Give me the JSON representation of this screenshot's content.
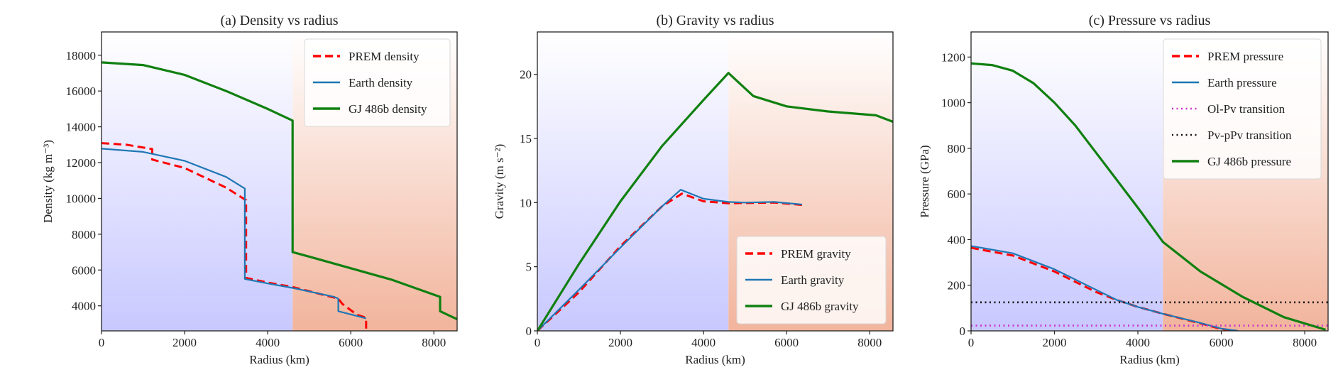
{
  "chart_data": [
    {
      "type": "line",
      "title": "(a) Density vs radius",
      "xlabel": "Radius (km)",
      "ylabel": "Density (kg m⁻³)",
      "xlim": [
        0,
        8560
      ],
      "ylim": [
        2600,
        19300
      ],
      "xticks": [
        0,
        2000,
        4000,
        6000,
        8000
      ],
      "yticks": [
        4000,
        6000,
        8000,
        10000,
        12000,
        14000,
        16000,
        18000
      ],
      "legend_position": "top-right",
      "shaded_regions": [
        {
          "from": 0,
          "to": 4600,
          "color": "#c8c8ff"
        },
        {
          "from": 4600,
          "to": 8560,
          "color": "#f2b49c"
        }
      ],
      "series": [
        {
          "name": "PREM density",
          "color": "#ff0000",
          "style": "dashed",
          "x": [
            0,
            600,
            1220,
            1220,
            2000,
            3000,
            3480,
            3480,
            4000,
            4600,
            5700,
            5800,
            6150,
            6350,
            6370,
            6370
          ],
          "y": [
            13090,
            13000,
            12760,
            12170,
            11700,
            10600,
            9900,
            5560,
            5300,
            5050,
            4400,
            4100,
            3500,
            3350,
            3300,
            2600
          ]
        },
        {
          "name": "Earth density",
          "color": "#1f77b4",
          "style": "solid",
          "x": [
            0,
            1000,
            2000,
            3000,
            3450,
            3450,
            4000,
            4600,
            5600,
            5700,
            5700,
            6370
          ],
          "y": [
            12780,
            12600,
            12100,
            11200,
            10550,
            5500,
            5250,
            5000,
            4500,
            4400,
            3700,
            3300
          ]
        },
        {
          "name": "GJ 486b density",
          "color": "#108010",
          "style": "solid",
          "x": [
            0,
            1000,
            2000,
            3000,
            4000,
            4600,
            4600,
            5000,
            6000,
            7000,
            8150,
            8150,
            8560
          ],
          "y": [
            17600,
            17450,
            16900,
            16000,
            15000,
            14350,
            7000,
            6750,
            6100,
            5450,
            4500,
            3700,
            3250
          ]
        }
      ]
    },
    {
      "type": "line",
      "title": "(b) Gravity vs radius",
      "xlabel": "Radius (km)",
      "ylabel": "Gravity (m s⁻²)",
      "xlim": [
        0,
        8560
      ],
      "ylim": [
        0,
        23.3
      ],
      "xticks": [
        0,
        2000,
        4000,
        6000,
        8000
      ],
      "yticks": [
        0,
        5,
        10,
        15,
        20
      ],
      "legend_position": "bottom-right",
      "shaded_regions": [
        {
          "from": 0,
          "to": 4600,
          "color": "#c8c8ff"
        },
        {
          "from": 4600,
          "to": 8560,
          "color": "#f2b49c"
        }
      ],
      "series": [
        {
          "name": "PREM gravity",
          "color": "#ff0000",
          "style": "dashed",
          "x": [
            0,
            1000,
            2000,
            3000,
            3480,
            4000,
            4600,
            5700,
            6370
          ],
          "y": [
            0,
            3.0,
            6.6,
            9.7,
            10.7,
            10.1,
            9.95,
            10.0,
            9.82
          ]
        },
        {
          "name": "Earth gravity",
          "color": "#1f77b4",
          "style": "solid",
          "x": [
            0,
            1000,
            2000,
            3000,
            3450,
            4000,
            4600,
            5000,
            5700,
            6370
          ],
          "y": [
            0,
            3.2,
            6.5,
            9.7,
            11.0,
            10.3,
            10.05,
            10.0,
            10.05,
            9.85
          ]
        },
        {
          "name": "GJ 486b gravity",
          "color": "#108010",
          "style": "solid",
          "x": [
            0,
            1000,
            2000,
            3000,
            4000,
            4600,
            5200,
            6000,
            7000,
            8150,
            8560
          ],
          "y": [
            0,
            5.2,
            10.1,
            14.4,
            18.0,
            20.1,
            18.3,
            17.5,
            17.1,
            16.8,
            16.3
          ]
        }
      ]
    },
    {
      "type": "line",
      "title": "(c) Pressure vs radius",
      "xlabel": "Radius (km)",
      "ylabel": "Pressure (GPa)",
      "xlim": [
        0,
        8560
      ],
      "ylim": [
        0,
        1310
      ],
      "xticks": [
        0,
        2000,
        4000,
        6000,
        8000
      ],
      "yticks": [
        0,
        200,
        400,
        600,
        800,
        1000,
        1200
      ],
      "legend_position": "top-right",
      "shaded_regions": [
        {
          "from": 0,
          "to": 4600,
          "color": "#c8c8ff"
        },
        {
          "from": 4600,
          "to": 8560,
          "color": "#f2b49c"
        }
      ],
      "series": [
        {
          "name": "PREM pressure",
          "color": "#ff0000",
          "style": "dashed",
          "x": [
            0,
            1000,
            2000,
            3000,
            3500,
            4000,
            4600,
            5500,
            6000,
            6371
          ],
          "y": [
            364,
            330,
            260,
            170,
            135,
            105,
            75,
            33,
            8,
            0
          ]
        },
        {
          "name": "Earth pressure",
          "color": "#1f77b4",
          "style": "solid",
          "x": [
            0,
            1000,
            2000,
            3000,
            3500,
            4000,
            4600,
            5500,
            6000,
            6400
          ],
          "y": [
            372,
            340,
            270,
            180,
            135,
            105,
            75,
            35,
            10,
            0
          ]
        },
        {
          "name": "Ol-Pv transition",
          "color": "#cc33cc",
          "style": "dotted",
          "x": [
            0,
            8560
          ],
          "y": [
            23,
            23
          ]
        },
        {
          "name": "Pv-pPv transition",
          "color": "#111111",
          "style": "dotted",
          "x": [
            0,
            8560
          ],
          "y": [
            125,
            125
          ]
        },
        {
          "name": "GJ 486b pressure",
          "color": "#108010",
          "style": "solid",
          "x": [
            0,
            500,
            1000,
            1500,
            2000,
            2500,
            3000,
            3500,
            4000,
            4600,
            5500,
            6500,
            7500,
            8500
          ],
          "y": [
            1172,
            1165,
            1140,
            1085,
            1000,
            900,
            780,
            660,
            540,
            390,
            260,
            150,
            60,
            5
          ]
        }
      ]
    }
  ]
}
